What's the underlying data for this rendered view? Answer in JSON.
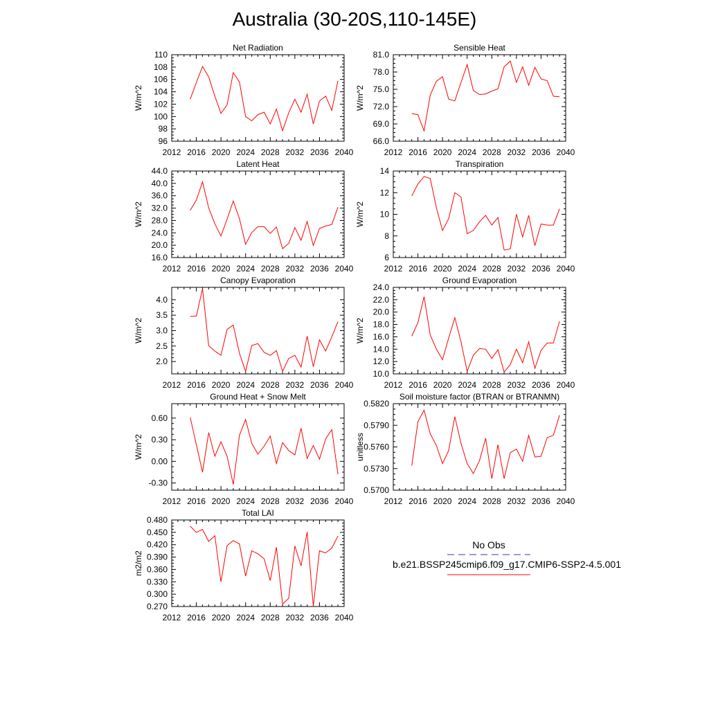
{
  "title": "Australia (30-20S,110-145E)",
  "x_ticks": [
    "2012",
    "2016",
    "2020",
    "2024",
    "2028",
    "2032",
    "2036",
    "2040"
  ],
  "legend": {
    "obs_label": "No Obs",
    "obs_color": "#3333aa",
    "model_label": "b.e21.BSSP245cmip6.f09_g17.CMIP6-SSP2-4.5.001",
    "model_color": "#ff0000"
  },
  "chart_data": [
    {
      "type": "line",
      "title": "Net Radiation",
      "ylabel": "W/m^2",
      "xlim": [
        2012,
        2040
      ],
      "ylim": [
        96,
        110
      ],
      "y_ticks": [
        "96",
        "98",
        "100",
        "102",
        "104",
        "106",
        "108",
        "110"
      ],
      "x": [
        2015,
        2016,
        2017,
        2018,
        2019,
        2020,
        2021,
        2022,
        2023,
        2024,
        2025,
        2026,
        2027,
        2028,
        2029,
        2030,
        2031,
        2032,
        2033,
        2034,
        2035,
        2036,
        2037,
        2038,
        2039
      ],
      "series": [
        {
          "values": [
            102.8,
            105.5,
            108.1,
            106.4,
            103.3,
            100.5,
            101.9,
            107.1,
            105.6,
            100.0,
            99.3,
            100.3,
            100.7,
            98.8,
            101.2,
            97.7,
            100.6,
            102.8,
            100.7,
            103.6,
            98.8,
            102.5,
            103.3,
            101.0,
            105.8
          ]
        }
      ]
    },
    {
      "type": "line",
      "title": "Sensible Heat",
      "ylabel": "W/m^2",
      "xlim": [
        2012,
        2040
      ],
      "ylim": [
        66,
        81
      ],
      "y_ticks": [
        "66.0",
        "69.0",
        "72.0",
        "75.0",
        "78.0",
        "81.0"
      ],
      "x": [
        2015,
        2016,
        2017,
        2018,
        2019,
        2020,
        2021,
        2022,
        2023,
        2024,
        2025,
        2026,
        2027,
        2028,
        2029,
        2030,
        2031,
        2032,
        2033,
        2034,
        2035,
        2036,
        2037,
        2038,
        2039
      ],
      "series": [
        {
          "values": [
            70.8,
            70.6,
            67.8,
            74.0,
            76.4,
            77.2,
            73.3,
            73.0,
            76.2,
            79.3,
            74.8,
            74.1,
            74.2,
            74.7,
            75.1,
            78.9,
            79.9,
            76.2,
            78.9,
            75.7,
            78.8,
            76.8,
            76.5,
            73.8,
            73.7
          ]
        }
      ]
    },
    {
      "type": "line",
      "title": "Latent Heat",
      "ylabel": "W/m^2",
      "xlim": [
        2012,
        2040
      ],
      "ylim": [
        16,
        44
      ],
      "y_ticks": [
        "16.0",
        "20.0",
        "24.0",
        "28.0",
        "32.0",
        "36.0",
        "40.0",
        "44.0"
      ],
      "x": [
        2015,
        2016,
        2017,
        2018,
        2019,
        2020,
        2021,
        2022,
        2023,
        2024,
        2025,
        2026,
        2027,
        2028,
        2029,
        2030,
        2031,
        2032,
        2033,
        2034,
        2035,
        2036,
        2037,
        2038,
        2039
      ],
      "series": [
        {
          "values": [
            31.3,
            34.6,
            40.5,
            32.1,
            26.9,
            23.0,
            28.4,
            34.3,
            28.6,
            20.3,
            24.1,
            26.0,
            26.0,
            23.8,
            25.9,
            18.9,
            20.6,
            25.7,
            21.6,
            27.7,
            19.9,
            25.4,
            26.2,
            26.7,
            32.3
          ]
        }
      ]
    },
    {
      "type": "line",
      "title": "Transpiration",
      "ylabel": "W/m^2",
      "xlim": [
        2012,
        2040
      ],
      "ylim": [
        6,
        14
      ],
      "y_ticks": [
        "6",
        "8",
        "10",
        "12",
        "14"
      ],
      "x": [
        2015,
        2016,
        2017,
        2018,
        2019,
        2020,
        2021,
        2022,
        2023,
        2024,
        2025,
        2026,
        2027,
        2028,
        2029,
        2030,
        2031,
        2032,
        2033,
        2034,
        2035,
        2036,
        2037,
        2038,
        2039
      ],
      "series": [
        {
          "values": [
            11.7,
            12.8,
            13.5,
            13.3,
            10.6,
            8.5,
            9.6,
            12.0,
            11.6,
            8.2,
            8.5,
            9.3,
            9.9,
            9.0,
            9.7,
            6.7,
            6.8,
            10.0,
            7.9,
            9.9,
            7.1,
            9.1,
            9.0,
            9.0,
            10.5
          ]
        }
      ]
    },
    {
      "type": "line",
      "title": "Canopy Evaporation",
      "ylabel": "W/m^2",
      "xlim": [
        2012,
        2040
      ],
      "ylim": [
        1.6,
        4.4
      ],
      "y_ticks": [
        "2.0",
        "2.5",
        "3.0",
        "3.5",
        "4.0"
      ],
      "x": [
        2015,
        2016,
        2017,
        2018,
        2019,
        2020,
        2021,
        2022,
        2023,
        2024,
        2025,
        2026,
        2027,
        2028,
        2029,
        2030,
        2031,
        2032,
        2033,
        2034,
        2035,
        2036,
        2037,
        2038,
        2039
      ],
      "series": [
        {
          "values": [
            3.46,
            3.47,
            4.36,
            2.51,
            2.34,
            2.2,
            3.04,
            3.18,
            2.27,
            1.68,
            2.52,
            2.58,
            2.3,
            2.2,
            2.35,
            1.68,
            2.1,
            2.2,
            1.82,
            2.82,
            1.83,
            2.7,
            2.34,
            2.8,
            3.29
          ]
        }
      ]
    },
    {
      "type": "line",
      "title": "Ground Evaporation",
      "ylabel": "W/m^2",
      "xlim": [
        2012,
        2040
      ],
      "ylim": [
        10,
        24
      ],
      "y_ticks": [
        "10.0",
        "12.0",
        "14.0",
        "16.0",
        "18.0",
        "20.0",
        "22.0",
        "24.0"
      ],
      "x": [
        2015,
        2016,
        2017,
        2018,
        2019,
        2020,
        2021,
        2022,
        2023,
        2024,
        2025,
        2026,
        2027,
        2028,
        2029,
        2030,
        2031,
        2032,
        2033,
        2034,
        2035,
        2036,
        2037,
        2038,
        2039
      ],
      "series": [
        {
          "values": [
            16.1,
            18.3,
            22.5,
            16.3,
            14.0,
            12.3,
            15.8,
            19.1,
            15.2,
            10.4,
            13.0,
            14.1,
            14.0,
            12.5,
            13.9,
            10.3,
            11.5,
            14.0,
            11.8,
            15.2,
            10.9,
            13.8,
            15.0,
            15.0,
            18.5
          ]
        }
      ]
    },
    {
      "type": "line",
      "title": "Ground Heat + Snow Melt",
      "ylabel": "W/m^2",
      "xlim": [
        2012,
        2040
      ],
      "ylim": [
        -0.4,
        0.8
      ],
      "y_ticks": [
        "-0.30",
        "0.00",
        "0.30",
        "0.60"
      ],
      "x": [
        2015,
        2016,
        2017,
        2018,
        2019,
        2020,
        2021,
        2022,
        2023,
        2024,
        2025,
        2026,
        2027,
        2028,
        2029,
        2030,
        2031,
        2032,
        2033,
        2034,
        2035,
        2036,
        2037,
        2038,
        2039
      ],
      "series": [
        {
          "values": [
            0.61,
            0.23,
            -0.15,
            0.4,
            0.07,
            0.27,
            0.07,
            -0.32,
            0.36,
            0.58,
            0.25,
            0.1,
            0.21,
            0.35,
            -0.03,
            0.26,
            0.15,
            0.09,
            0.46,
            0.04,
            0.22,
            0.03,
            0.31,
            0.44,
            -0.18
          ]
        }
      ]
    },
    {
      "type": "line",
      "title": "Soil moisture factor (BTRAN or BTRANMN)",
      "ylabel": "unitless",
      "xlim": [
        2012,
        2040
      ],
      "ylim": [
        0.57,
        0.582
      ],
      "y_ticks": [
        "0.5700",
        "0.5730",
        "0.5760",
        "0.5790",
        "0.5820"
      ],
      "x": [
        2015,
        2016,
        2017,
        2018,
        2019,
        2020,
        2021,
        2022,
        2023,
        2024,
        2025,
        2026,
        2027,
        2028,
        2029,
        2030,
        2031,
        2032,
        2033,
        2034,
        2035,
        2036,
        2037,
        2038,
        2039
      ],
      "series": [
        {
          "values": [
            0.5734,
            0.5795,
            0.5811,
            0.5778,
            0.5762,
            0.5737,
            0.5755,
            0.5802,
            0.5765,
            0.5737,
            0.5723,
            0.5741,
            0.5772,
            0.5716,
            0.5763,
            0.5716,
            0.5752,
            0.5757,
            0.574,
            0.5776,
            0.5746,
            0.5747,
            0.5773,
            0.5776,
            0.5804
          ]
        }
      ]
    },
    {
      "type": "line",
      "title": "Total LAI",
      "ylabel": "m2/m2",
      "xlim": [
        2012,
        2040
      ],
      "ylim": [
        0.27,
        0.48
      ],
      "y_ticks": [
        "0.270",
        "0.300",
        "0.330",
        "0.360",
        "0.390",
        "0.420",
        "0.450",
        "0.480"
      ],
      "x": [
        2015,
        2016,
        2017,
        2018,
        2019,
        2020,
        2021,
        2022,
        2023,
        2024,
        2025,
        2026,
        2027,
        2028,
        2029,
        2030,
        2031,
        2032,
        2033,
        2034,
        2035,
        2036,
        2037,
        2038,
        2039
      ],
      "series": [
        {
          "values": [
            0.465,
            0.45,
            0.457,
            0.428,
            0.442,
            0.33,
            0.418,
            0.43,
            0.422,
            0.344,
            0.405,
            0.398,
            0.386,
            0.333,
            0.414,
            0.276,
            0.29,
            0.417,
            0.369,
            0.451,
            0.27,
            0.405,
            0.4,
            0.412,
            0.441
          ]
        }
      ]
    }
  ]
}
